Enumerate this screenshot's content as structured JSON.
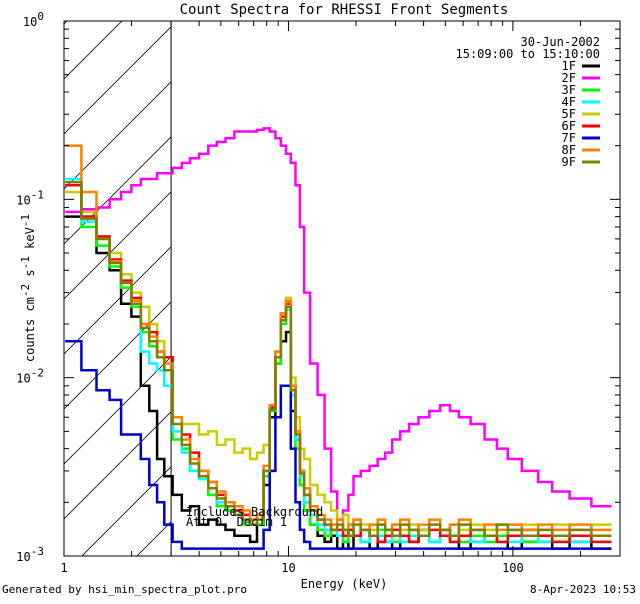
{
  "chart_data": {
    "type": "line",
    "title": "Count Spectra for RHESSI Front Segments",
    "xlabel": "Energy (keV)",
    "ylabel_parts": {
      "a": "counts cm",
      "b": "-2",
      "c": " s",
      "d": "-1",
      "e": " keV",
      "f": "-1"
    },
    "xscale": "log",
    "yscale": "log",
    "xlim": [
      1,
      300
    ],
    "ylim": [
      0.001,
      1
    ],
    "x_tick_labels": [
      {
        "v": 1,
        "label": "1"
      },
      {
        "v": 10,
        "label": "10"
      },
      {
        "v": 100,
        "label": "100"
      }
    ],
    "y_tick_labels": [
      {
        "v": 1,
        "label": "10",
        "exp": "0"
      },
      {
        "v": 0.1,
        "label": "10",
        "exp": "-1"
      },
      {
        "v": 0.01,
        "label": "10",
        "exp": "-2"
      },
      {
        "v": 0.001,
        "label": "10",
        "exp": "-3"
      }
    ],
    "date": "30-Jun-2002",
    "time_range": "15:09:00 to 15:10:00",
    "annotations": [
      "Includes Background",
      "Att 0, Decim 1"
    ],
    "shaded_region": {
      "x0": 1,
      "x1": 3
    },
    "series": [
      {
        "name": "1F",
        "color": "#000000",
        "x": [
          1.1,
          1.3,
          1.5,
          1.7,
          1.9,
          2.1,
          2.3,
          2.5,
          2.7,
          2.9,
          3.2,
          3.5,
          3.8,
          4.2,
          4.6,
          5,
          5.5,
          6,
          6.5,
          7,
          7.5,
          8,
          8.5,
          9,
          9.5,
          10,
          10.5,
          11,
          11.5,
          12,
          13,
          14,
          15,
          16,
          17,
          18,
          19,
          20,
          22,
          24,
          26,
          28,
          30,
          33,
          36,
          40,
          45,
          50,
          55,
          60,
          70,
          80,
          90,
          100,
          120,
          140,
          160,
          200,
          250
        ],
        "y": [
          0.08,
          0.08,
          0.05,
          0.04,
          0.026,
          0.022,
          0.009,
          0.0065,
          0.0035,
          0.0028,
          0.0022,
          0.0018,
          0.0019,
          0.0015,
          0.0016,
          0.0015,
          0.0014,
          0.0013,
          0.0013,
          0.0012,
          0.0015,
          0.0025,
          0.006,
          0.012,
          0.016,
          0.018,
          0.0065,
          0.0045,
          0.0025,
          0.0018,
          0.0015,
          0.0013,
          0.0012,
          0.0013,
          0.0011,
          0.0012,
          0.0011,
          0.0013,
          0.0012,
          0.0011,
          0.0012,
          0.0012,
          0.0011,
          0.0013,
          0.0012,
          0.0014,
          0.0012,
          0.0013,
          0.0012,
          0.0011,
          0.0012,
          0.0013,
          0.0012,
          0.0011,
          0.0012,
          0.0012,
          0.0011,
          0.0012,
          0.0011
        ]
      },
      {
        "name": "2F",
        "color": "#ff00ff",
        "x": [
          1.1,
          1.3,
          1.5,
          1.7,
          1.9,
          2.1,
          2.3,
          2.5,
          2.7,
          2.9,
          3.2,
          3.5,
          3.8,
          4.2,
          4.6,
          5,
          5.5,
          6,
          6.5,
          7,
          7.5,
          8,
          8.5,
          9,
          9.5,
          10,
          10.5,
          11,
          11.5,
          12,
          13,
          14,
          15,
          16,
          17,
          18,
          19,
          20,
          22,
          24,
          26,
          28,
          30,
          33,
          36,
          40,
          45,
          50,
          55,
          60,
          70,
          80,
          90,
          100,
          120,
          140,
          160,
          200,
          250
        ],
        "y": [
          0.085,
          0.088,
          0.09,
          0.1,
          0.11,
          0.12,
          0.13,
          0.13,
          0.14,
          0.14,
          0.15,
          0.16,
          0.17,
          0.18,
          0.2,
          0.21,
          0.22,
          0.24,
          0.24,
          0.24,
          0.245,
          0.25,
          0.24,
          0.22,
          0.2,
          0.18,
          0.16,
          0.12,
          0.07,
          0.03,
          0.012,
          0.008,
          0.004,
          0.0023,
          0.0016,
          0.0018,
          0.0022,
          0.0028,
          0.003,
          0.0032,
          0.0035,
          0.0038,
          0.0045,
          0.005,
          0.0055,
          0.006,
          0.0065,
          0.007,
          0.0065,
          0.006,
          0.0055,
          0.0045,
          0.004,
          0.0035,
          0.003,
          0.0026,
          0.0023,
          0.0021,
          0.0019
        ]
      },
      {
        "name": "3F",
        "color": "#00ff00",
        "x": [
          1.1,
          1.3,
          1.5,
          1.7,
          1.9,
          2.1,
          2.3,
          2.5,
          2.7,
          2.9,
          3.2,
          3.5,
          3.8,
          4.2,
          4.6,
          5,
          5.5,
          6,
          6.5,
          7,
          7.5,
          8,
          8.5,
          9,
          9.5,
          10,
          10.5,
          11,
          11.5,
          12,
          13,
          14,
          15,
          16,
          17,
          18,
          19,
          20,
          22,
          24,
          26,
          28,
          30,
          33,
          36,
          40,
          45,
          50,
          55,
          60,
          70,
          80,
          90,
          100,
          120,
          140,
          160,
          200,
          250
        ],
        "y": [
          0.12,
          0.07,
          0.055,
          0.042,
          0.032,
          0.025,
          0.018,
          0.015,
          0.013,
          0.009,
          0.0045,
          0.004,
          0.003,
          0.0028,
          0.0022,
          0.0019,
          0.0018,
          0.0017,
          0.0015,
          0.0016,
          0.0015,
          0.0028,
          0.0065,
          0.012,
          0.02,
          0.026,
          0.009,
          0.004,
          0.0025,
          0.0018,
          0.0015,
          0.0014,
          0.0013,
          0.0014,
          0.0013,
          0.0012,
          0.0014,
          0.0013,
          0.0012,
          0.0013,
          0.0014,
          0.0013,
          0.0012,
          0.0013,
          0.0014,
          0.0013,
          0.0012,
          0.0014,
          0.0013,
          0.0012,
          0.0013,
          0.0012,
          0.0013,
          0.0014,
          0.0012,
          0.0013,
          0.0012,
          0.0013,
          0.0012
        ]
      },
      {
        "name": "4F",
        "color": "#00ffff",
        "x": [
          1.1,
          1.3,
          1.5,
          1.7,
          1.9,
          2.1,
          2.3,
          2.5,
          2.7,
          2.9,
          3.2,
          3.5,
          3.8,
          4.2,
          4.6,
          5,
          5.5,
          6,
          6.5,
          7,
          7.5,
          8,
          8.5,
          9,
          9.5,
          10,
          10.5,
          11,
          11.5,
          12,
          13,
          14,
          15,
          16,
          17,
          18,
          19,
          20,
          22,
          24,
          26,
          28,
          30,
          33,
          36,
          40,
          45,
          50,
          55,
          60,
          70,
          80,
          90,
          100,
          120,
          140,
          160,
          200,
          250
        ],
        "y": [
          0.13,
          0.075,
          0.06,
          0.045,
          0.035,
          0.027,
          0.014,
          0.012,
          0.011,
          0.009,
          0.005,
          0.0038,
          0.003,
          0.0027,
          0.0024,
          0.002,
          0.0019,
          0.0017,
          0.0016,
          0.0015,
          0.0016,
          0.003,
          0.007,
          0.013,
          0.021,
          0.024,
          0.008,
          0.0045,
          0.0028,
          0.002,
          0.0017,
          0.0015,
          0.0014,
          0.0014,
          0.0013,
          0.0014,
          0.0013,
          0.0013,
          0.0012,
          0.0013,
          0.0013,
          0.0012,
          0.0013,
          0.0012,
          0.0013,
          0.0013,
          0.0012,
          0.0013,
          0.0012,
          0.0013,
          0.0012,
          0.0013,
          0.0012,
          0.0012,
          0.0013,
          0.0012,
          0.0013,
          0.0012,
          0.0012
        ]
      },
      {
        "name": "5F",
        "color": "#cccc00",
        "x": [
          1.1,
          1.3,
          1.5,
          1.7,
          1.9,
          2.1,
          2.3,
          2.5,
          2.7,
          2.9,
          3.2,
          3.5,
          3.8,
          4.2,
          4.6,
          5,
          5.5,
          6,
          6.5,
          7,
          7.5,
          8,
          8.5,
          9,
          9.5,
          10,
          10.5,
          11,
          11.5,
          12,
          13,
          14,
          15,
          16,
          17,
          18,
          19,
          20,
          22,
          24,
          26,
          28,
          30,
          33,
          36,
          40,
          45,
          50,
          55,
          60,
          70,
          80,
          90,
          100,
          120,
          140,
          160,
          200,
          250
        ],
        "y": [
          0.11,
          0.085,
          0.06,
          0.05,
          0.038,
          0.03,
          0.025,
          0.02,
          0.016,
          0.011,
          0.006,
          0.0055,
          0.0055,
          0.0048,
          0.005,
          0.0042,
          0.0045,
          0.0038,
          0.004,
          0.0035,
          0.0038,
          0.0042,
          0.007,
          0.014,
          0.022,
          0.028,
          0.01,
          0.006,
          0.004,
          0.0035,
          0.0025,
          0.0022,
          0.002,
          0.0018,
          0.0016,
          0.0017,
          0.0015,
          0.0016,
          0.0015,
          0.0014,
          0.0015,
          0.0014,
          0.0015,
          0.0014,
          0.0015,
          0.0014,
          0.0015,
          0.0014,
          0.0015,
          0.0014,
          0.0015,
          0.0014,
          0.0015,
          0.0014,
          0.0015,
          0.0014,
          0.0015,
          0.0014,
          0.0015
        ]
      },
      {
        "name": "6F",
        "color": "#ff0000",
        "x": [
          1.1,
          1.3,
          1.5,
          1.7,
          1.9,
          2.1,
          2.3,
          2.5,
          2.7,
          2.9,
          3.2,
          3.5,
          3.8,
          4.2,
          4.6,
          5,
          5.5,
          6,
          6.5,
          7,
          7.5,
          8,
          8.5,
          9,
          9.5,
          10,
          10.5,
          11,
          11.5,
          12,
          13,
          14,
          15,
          16,
          17,
          18,
          19,
          20,
          22,
          24,
          26,
          28,
          30,
          33,
          36,
          40,
          45,
          50,
          55,
          60,
          70,
          80,
          90,
          100,
          120,
          140,
          160,
          200,
          250
        ],
        "y": [
          0.12,
          0.08,
          0.062,
          0.046,
          0.035,
          0.028,
          0.02,
          0.018,
          0.014,
          0.013,
          0.006,
          0.0048,
          0.0038,
          0.003,
          0.0026,
          0.0022,
          0.002,
          0.0018,
          0.0017,
          0.0016,
          0.0017,
          0.003,
          0.0068,
          0.013,
          0.022,
          0.026,
          0.009,
          0.005,
          0.003,
          0.0022,
          0.0018,
          0.0016,
          0.0015,
          0.0014,
          0.0014,
          0.0013,
          0.0014,
          0.0013,
          0.0014,
          0.0013,
          0.0012,
          0.0013,
          0.0014,
          0.0013,
          0.0012,
          0.0013,
          0.0014,
          0.0013,
          0.0012,
          0.0013,
          0.0014,
          0.0013,
          0.0012,
          0.0013,
          0.0014,
          0.0013,
          0.0012,
          0.0013,
          0.0012
        ]
      },
      {
        "name": "7F",
        "color": "#0000cc",
        "x": [
          1.1,
          1.3,
          1.5,
          1.7,
          1.9,
          2.1,
          2.3,
          2.5,
          2.7,
          2.9,
          3.2,
          3.5,
          3.8,
          4.2,
          4.6,
          5,
          5.5,
          6,
          6.5,
          7,
          7.5,
          8,
          8.5,
          9,
          9.5,
          10,
          10.5,
          11,
          11.5,
          12,
          13,
          14,
          15,
          16,
          17,
          18,
          19,
          20,
          22,
          24,
          26,
          28,
          30,
          33,
          36,
          40,
          45,
          50,
          55,
          60,
          70,
          80,
          90,
          100,
          120,
          140,
          160,
          200,
          250
        ],
        "y": [
          0.016,
          0.011,
          0.0085,
          0.0075,
          0.0048,
          0.0048,
          0.0035,
          0.0025,
          0.002,
          0.0015,
          0.0012,
          0.0011,
          0.0011,
          0.0011,
          0.0011,
          0.0011,
          0.0011,
          0.0011,
          0.0011,
          0.0011,
          0.0011,
          0.0014,
          0.003,
          0.006,
          0.009,
          0.009,
          0.004,
          0.002,
          0.0014,
          0.0012,
          0.0011,
          0.0011,
          0.0011,
          0.0011,
          0.0011,
          0.0011,
          0.0011,
          0.0011,
          0.0011,
          0.0011,
          0.0011,
          0.0011,
          0.0011,
          0.0011,
          0.0011,
          0.0011,
          0.0011,
          0.0011,
          0.0011,
          0.0011,
          0.0011,
          0.0011,
          0.0011,
          0.0011,
          0.0011,
          0.0011,
          0.0011,
          0.0011,
          0.0011
        ]
      },
      {
        "name": "8F",
        "color": "#ff8000",
        "x": [
          1.1,
          1.3,
          1.5,
          1.7,
          1.9,
          2.1,
          2.3,
          2.5,
          2.7,
          2.9,
          3.2,
          3.5,
          3.8,
          4.2,
          4.6,
          5,
          5.5,
          6,
          6.5,
          7,
          7.5,
          8,
          8.5,
          9,
          9.5,
          10,
          10.5,
          11,
          11.5,
          12,
          13,
          14,
          15,
          16,
          17,
          18,
          19,
          20,
          22,
          24,
          26,
          28,
          30,
          33,
          36,
          40,
          45,
          50,
          55,
          60,
          70,
          80,
          90,
          100,
          120,
          140,
          160,
          200,
          250
        ],
        "y": [
          0.2,
          0.11,
          0.06,
          0.045,
          0.034,
          0.027,
          0.02,
          0.017,
          0.014,
          0.012,
          0.006,
          0.0045,
          0.0035,
          0.003,
          0.0026,
          0.0023,
          0.002,
          0.0019,
          0.0018,
          0.0016,
          0.0017,
          0.0032,
          0.007,
          0.014,
          0.023,
          0.027,
          0.009,
          0.005,
          0.003,
          0.0024,
          0.0019,
          0.0017,
          0.0016,
          0.0015,
          0.0016,
          0.0014,
          0.0015,
          0.0016,
          0.0014,
          0.0015,
          0.0016,
          0.0014,
          0.0015,
          0.0016,
          0.0014,
          0.0015,
          0.0016,
          0.0014,
          0.0015,
          0.0016,
          0.0014,
          0.0015,
          0.0014,
          0.0015,
          0.0014,
          0.0015,
          0.0014,
          0.0015,
          0.0014
        ]
      },
      {
        "name": "9F",
        "color": "#808000",
        "x": [
          1.1,
          1.3,
          1.5,
          1.7,
          1.9,
          2.1,
          2.3,
          2.5,
          2.7,
          2.9,
          3.2,
          3.5,
          3.8,
          4.2,
          4.6,
          5,
          5.5,
          6,
          6.5,
          7,
          7.5,
          8,
          8.5,
          9,
          9.5,
          10,
          10.5,
          11,
          11.5,
          12,
          13,
          14,
          15,
          16,
          17,
          18,
          19,
          20,
          22,
          24,
          26,
          28,
          30,
          33,
          36,
          40,
          45,
          50,
          55,
          60,
          70,
          80,
          90,
          100,
          120,
          140,
          160,
          200,
          250
        ],
        "y": [
          0.125,
          0.078,
          0.06,
          0.044,
          0.034,
          0.026,
          0.019,
          0.016,
          0.013,
          0.011,
          0.0055,
          0.0042,
          0.0033,
          0.0028,
          0.0024,
          0.0021,
          0.0019,
          0.0017,
          0.0016,
          0.0015,
          0.0016,
          0.003,
          0.0066,
          0.013,
          0.021,
          0.025,
          0.0085,
          0.0048,
          0.0029,
          0.0022,
          0.0018,
          0.0016,
          0.0015,
          0.0014,
          0.0015,
          0.0014,
          0.0013,
          0.0015,
          0.0014,
          0.0013,
          0.0015,
          0.0014,
          0.0013,
          0.0015,
          0.0014,
          0.0013,
          0.0015,
          0.0014,
          0.0013,
          0.0015,
          0.0014,
          0.0013,
          0.0015,
          0.0014,
          0.0013,
          0.0014,
          0.0013,
          0.0014,
          0.0013
        ]
      }
    ]
  },
  "footer": {
    "generated_by": "Generated by hsi_min_spectra_plot.pro",
    "timestamp": "8-Apr-2023 10:53"
  }
}
